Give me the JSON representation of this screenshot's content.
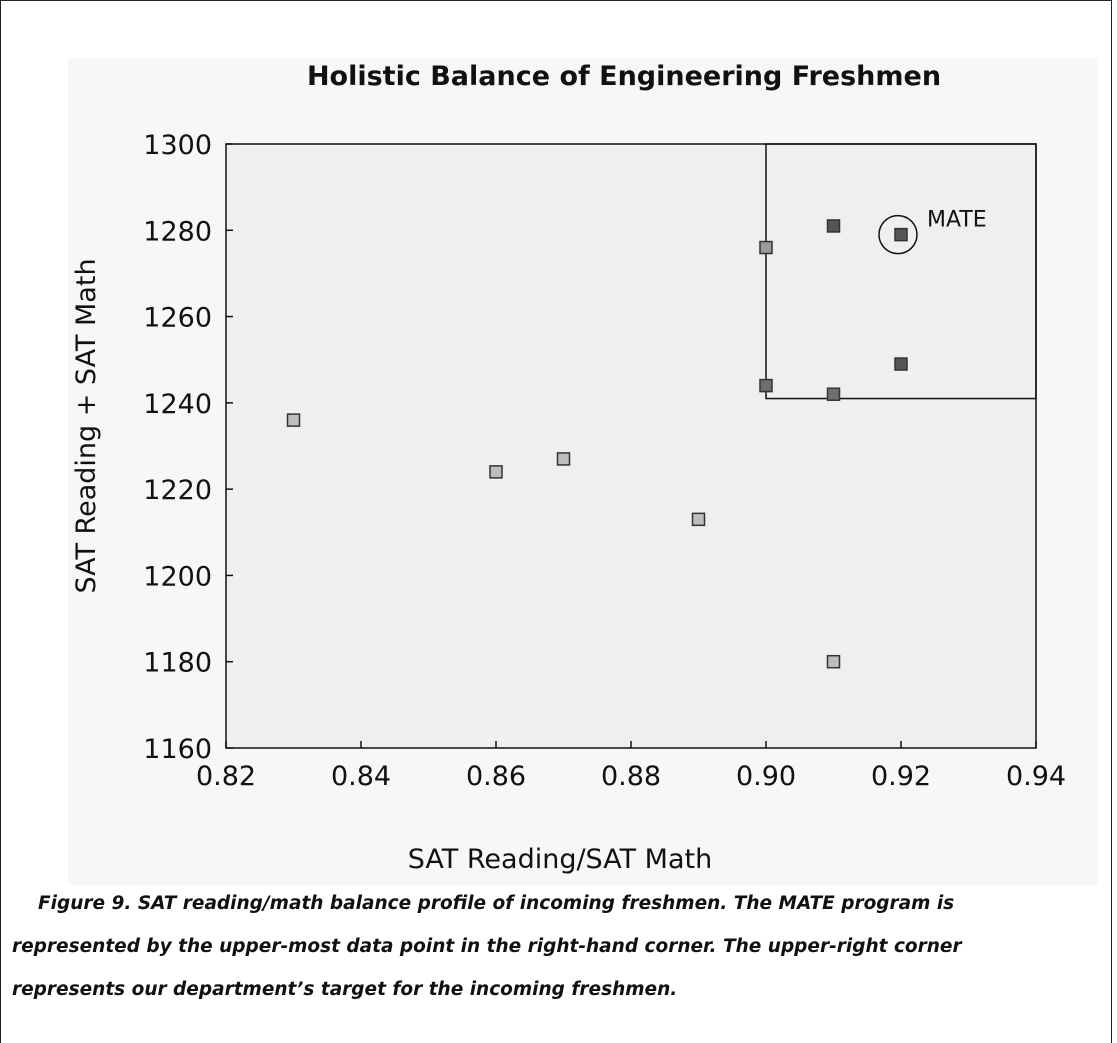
{
  "chart_data": {
    "type": "scatter",
    "title": "Holistic Balance of Engineering Freshmen",
    "xlabel": "SAT Reading/SAT Math",
    "ylabel": "SAT Reading + SAT Math",
    "x": [
      0.83,
      0.86,
      0.87,
      0.89,
      0.9,
      0.9,
      0.91,
      0.91,
      0.91,
      0.92,
      0.92
    ],
    "values": [
      1236,
      1224,
      1227,
      1213,
      1276,
      1244,
      1281,
      1242,
      1180,
      1279,
      1249
    ],
    "colors": [
      "#bdbdbd",
      "#bdbdbd",
      "#bdbdbd",
      "#bdbdbd",
      "#9a9a9a",
      "#6e6e6e",
      "#555555",
      "#6e6e6e",
      "#bdbdbd",
      "#555555",
      "#555555"
    ],
    "xlim": [
      0.82,
      0.94
    ],
    "ylim": [
      1160,
      1300
    ],
    "xticks": [
      0.82,
      0.84,
      0.86,
      0.88,
      {
        "value": 0.9,
        "label": "0.90"
      },
      0.92,
      0.94
    ],
    "yticks": [
      1160,
      1180,
      1200,
      1220,
      1240,
      1260,
      1280,
      1300
    ],
    "target_region": {
      "xlim": [
        0.9,
        0.94
      ],
      "ylim": [
        1241,
        1300
      ]
    },
    "annotation": {
      "text": "MATE",
      "x": 0.92,
      "y": 1279
    }
  },
  "caption": [
    "Figure 9. SAT reading/math balance profile of incoming freshmen. The MATE program is",
    "represented by the upper-most data point in the right-hand corner. The upper-right corner",
    "represents our department’s target for the incoming freshmen."
  ]
}
